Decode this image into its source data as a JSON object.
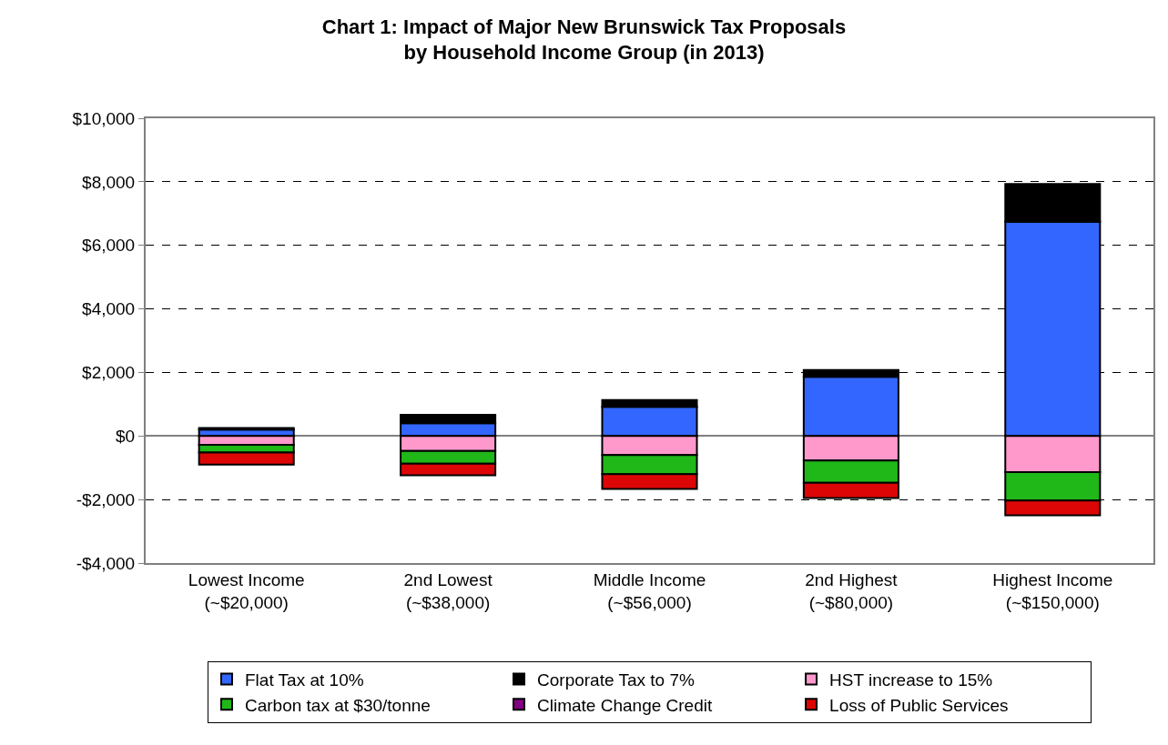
{
  "chart_data": {
    "type": "bar",
    "stacked": true,
    "title": "Chart 1: Impact of Major New Brunswick Tax Proposals\nby Household Income Group (in 2013)",
    "categories": [
      "Lowest Income\n(~$20,000)",
      "2nd Lowest\n(~$38,000)",
      "Middle Income\n(~$56,000)",
      "2nd Highest\n(~$80,000)",
      "Highest Income\n(~$150,000)"
    ],
    "series": [
      {
        "name": "Flat Tax at 10%",
        "color": "#3366ff",
        "values": [
          200,
          400,
          920,
          1860,
          6740
        ]
      },
      {
        "name": "Corporate Tax to 7%",
        "color": "#000000",
        "values": [
          50,
          270,
          210,
          220,
          1190
        ]
      },
      {
        "name": "HST increase to 15%",
        "color": "#ff99cc",
        "values": [
          -280,
          -470,
          -600,
          -770,
          -1140
        ]
      },
      {
        "name": "Carbon tax at $30/tonne",
        "color": "#20b818",
        "values": [
          -240,
          -400,
          -600,
          -700,
          -890
        ]
      },
      {
        "name": "Climate Change Credit",
        "color": "#800080",
        "values": [
          null,
          null,
          null,
          null,
          null
        ]
      },
      {
        "name": "Loss of Public Services",
        "color": "#dd0606",
        "values": [
          -380,
          -370,
          -470,
          -480,
          -470
        ]
      }
    ],
    "ylim": [
      -4000,
      10000
    ],
    "yticks": [
      {
        "value": -4000,
        "label": "-$4,000"
      },
      {
        "value": -2000,
        "label": "-$2,000"
      },
      {
        "value": 0,
        "label": "$0"
      },
      {
        "value": 2000,
        "label": "$2,000"
      },
      {
        "value": 4000,
        "label": "$4,000"
      },
      {
        "value": 6000,
        "label": "$6,000"
      },
      {
        "value": 8000,
        "label": "$8,000"
      },
      {
        "value": 10000,
        "label": "$10,000"
      }
    ],
    "grid": "y",
    "legend": "bottom"
  }
}
